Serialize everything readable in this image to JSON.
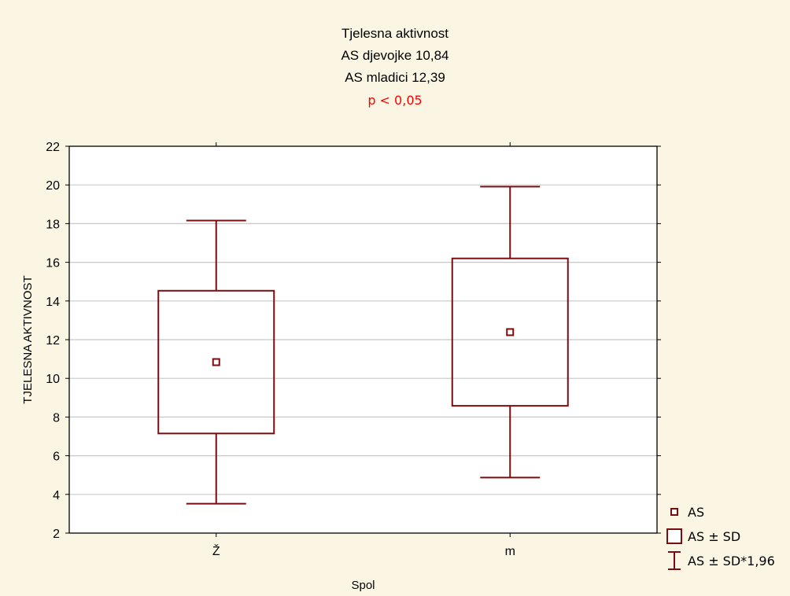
{
  "title_lines": [
    "Tjelesna aktivnost",
    "AS djevojke 10,84",
    "AS mladici 12,39"
  ],
  "p_value_text": "p < 0,05",
  "colors": {
    "background": "#fbf6e3",
    "plot_area": "#ffffff",
    "marks": "#7b0c10",
    "grid": "#c8c8c8",
    "p_value": "#ff0000"
  },
  "chart_data": {
    "type": "box",
    "xlabel": "Spol",
    "ylabel": "TJELESNA AKTIVNOST",
    "ylim": [
      2,
      22
    ],
    "yticks": [
      "2",
      "4",
      "6",
      "8",
      "10",
      "12",
      "14",
      "16",
      "18",
      "20",
      "22"
    ],
    "grid": true,
    "legend_position": "bottom-right",
    "categories": [
      "Ž",
      "m"
    ],
    "groups": [
      {
        "category": "Ž",
        "mean": 10.84,
        "sd_low": 7.15,
        "sd_high": 14.53,
        "whisker_low": 3.52,
        "whisker_high": 18.16
      },
      {
        "category": "m",
        "mean": 12.39,
        "sd_low": 8.58,
        "sd_high": 16.2,
        "whisker_low": 4.87,
        "whisker_high": 19.91
      }
    ],
    "legend": [
      "AS",
      "AS ± SD",
      "AS ± SD*1,96"
    ]
  }
}
